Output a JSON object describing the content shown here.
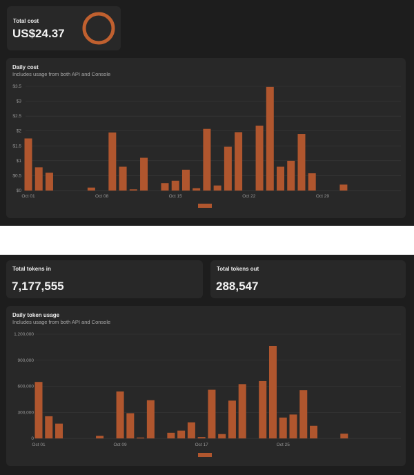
{
  "cost_section": {
    "total_cost": {
      "label": "Total cost",
      "value": "US$24.37"
    },
    "daily_cost": {
      "title": "Daily cost",
      "subtitle": "Includes usage from both API and Console"
    }
  },
  "token_section": {
    "tokens_in": {
      "label": "Total tokens in",
      "value": "7,177,555"
    },
    "tokens_out": {
      "label": "Total tokens out",
      "value": "288,547"
    },
    "daily_tokens": {
      "title": "Daily token usage",
      "subtitle": "Includes usage from both API and Console"
    }
  },
  "colors": {
    "bar": "#b0562e",
    "donut": "#c0602f"
  },
  "chart_data": [
    {
      "type": "bar",
      "title": "Daily cost",
      "ylabel": "",
      "xlabel": "",
      "ylim": [
        0,
        3.5
      ],
      "yticks": [
        "$0",
        "$0.5",
        "$1",
        "$1.5",
        "$2",
        "$2.5",
        "$3",
        "$3.5"
      ],
      "xticks": [
        {
          "day": 1,
          "label": "Oct 01"
        },
        {
          "day": 8,
          "label": "Oct 08"
        },
        {
          "day": 15,
          "label": "Oct 15"
        },
        {
          "day": 22,
          "label": "Oct 22"
        },
        {
          "day": 29,
          "label": "Oct 29"
        }
      ],
      "days": 31,
      "values": [
        1.75,
        0.78,
        0.6,
        0,
        0,
        0,
        0.1,
        0,
        1.95,
        0.8,
        0.04,
        1.1,
        0,
        0.25,
        0.33,
        0.7,
        0.08,
        2.07,
        0.17,
        1.47,
        1.96,
        0,
        2.18,
        3.48,
        0.8,
        1.0,
        1.9,
        0.58,
        0,
        0,
        0.2
      ]
    },
    {
      "type": "bar",
      "title": "Daily token usage",
      "ylabel": "",
      "xlabel": "",
      "ylim": [
        0,
        1200000
      ],
      "yticks": [
        "0",
        "300,000",
        "600,000",
        "900,000",
        "1,200,000"
      ],
      "xticks": [
        {
          "day": 1,
          "label": "Oct 01"
        },
        {
          "day": 9,
          "label": "Oct 09"
        },
        {
          "day": 17,
          "label": "Oct 17"
        },
        {
          "day": 25,
          "label": "Oct 25"
        }
      ],
      "days": 31,
      "values": [
        650000,
        255000,
        170000,
        0,
        0,
        0,
        30000,
        0,
        540000,
        290000,
        10000,
        440000,
        0,
        65000,
        90000,
        185000,
        15000,
        560000,
        50000,
        435000,
        625000,
        0,
        660000,
        1065000,
        240000,
        275000,
        555000,
        145000,
        0,
        0,
        55000
      ]
    }
  ]
}
